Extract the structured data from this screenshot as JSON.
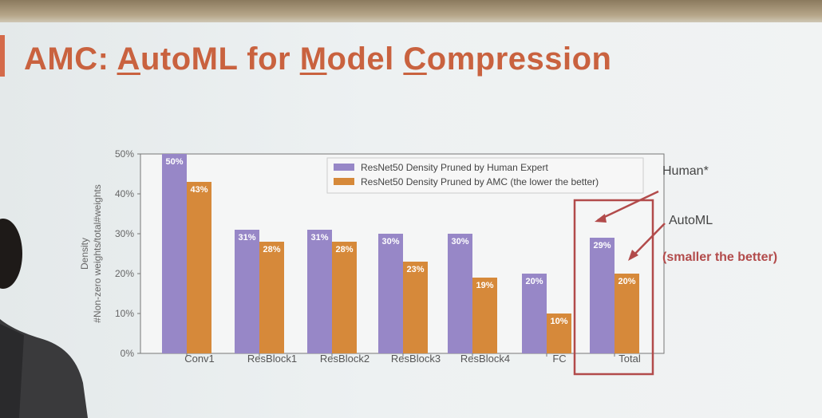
{
  "slide": {
    "title_parts": [
      "AMC: ",
      "A",
      "utoML for ",
      "M",
      "odel ",
      "C",
      "ompression"
    ]
  },
  "annotations": {
    "human_label": "Human*",
    "automl_label": "AutoML",
    "note": "(smaller the better)"
  },
  "colors": {
    "human": "#9787c7",
    "amc": "#d6893a",
    "highlight": "#b24b4b",
    "title": "#c9623f"
  },
  "chart_data": {
    "type": "bar",
    "categories": [
      "Conv1",
      "ResBlock1",
      "ResBlock2",
      "ResBlock3",
      "ResBlock4",
      "FC",
      "Total"
    ],
    "series": [
      {
        "name": "ResNet50 Density Pruned by Human Expert",
        "values": [
          50,
          31,
          31,
          30,
          30,
          20,
          29
        ]
      },
      {
        "name": "ResNet50 Density Pruned by AMC (the lower the better)",
        "values": [
          43,
          28,
          28,
          23,
          19,
          10,
          20
        ]
      }
    ],
    "data_labels": [
      [
        "50%",
        "31%",
        "31%",
        "30%",
        "30%",
        "20%",
        "29%"
      ],
      [
        "43%",
        "28%",
        "28%",
        "23%",
        "19%",
        "10%",
        "20%"
      ]
    ],
    "ylabel": [
      "Density",
      "#Non-zero weights/total#weights"
    ],
    "ylim": [
      0,
      50
    ],
    "yticks": [
      "0%",
      "10%",
      "20%",
      "30%",
      "40%",
      "50%"
    ],
    "legend_position": "top-right",
    "grid": false
  }
}
